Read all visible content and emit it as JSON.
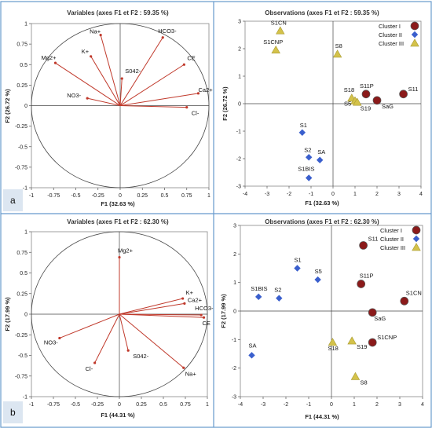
{
  "panels": [
    {
      "letter": "a"
    },
    {
      "letter": "b"
    }
  ],
  "colors": {
    "cluster_I": "#8b1a1a",
    "cluster_I_ring": "#c23b3b",
    "cluster_II": "#3a5fcd",
    "cluster_III": "#d4c24a",
    "cluster_III_edge": "#a89a30",
    "vector": "#c0392b",
    "circle": "#444444",
    "frame": "#6699cc",
    "letter_bg": "#dce6f1"
  },
  "chart_data": [
    {
      "type": "scatter",
      "variant": "correlation-circle",
      "title": "Variables (axes F1 et F2 : 59.35 %)",
      "xlabel": "F1 (32.63 %)",
      "ylabel": "F2 (26.72 %)",
      "xlim": [
        -1,
        1
      ],
      "ylim": [
        -1,
        1
      ],
      "xticks": [
        "-1",
        "-0.75",
        "-0.5",
        "-0.25",
        "0",
        "0.25",
        "0.5",
        "0.75",
        "1"
      ],
      "yticks": [
        "-1",
        "-0.75",
        "-0.5",
        "-0.25",
        "0",
        "0.25",
        "0.5",
        "0.75",
        "1"
      ],
      "points": [
        {
          "label": "Na+",
          "x": -0.22,
          "y": 0.86
        },
        {
          "label": "K+",
          "x": -0.33,
          "y": 0.6
        },
        {
          "label": "Mg2+",
          "x": -0.73,
          "y": 0.52
        },
        {
          "label": "NO3-",
          "x": -0.37,
          "y": 0.09
        },
        {
          "label": "S042-",
          "x": 0.02,
          "y": 0.33
        },
        {
          "label": "HCO3-",
          "x": 0.48,
          "y": 0.83
        },
        {
          "label": "CE",
          "x": 0.72,
          "y": 0.5
        },
        {
          "label": "Ca2+",
          "x": 0.88,
          "y": 0.15
        },
        {
          "label": "Cl-",
          "x": 0.75,
          "y": -0.02
        }
      ]
    },
    {
      "type": "scatter",
      "title": "Observations (axes F1 et F2 : 59.35 %)",
      "xlabel": "F1 (32.63 %)",
      "ylabel": "F2 (26.72 %)",
      "xlim": [
        -4,
        4
      ],
      "ylim": [
        -3,
        3
      ],
      "xticks": [
        "-4",
        "-3",
        "-2",
        "-1",
        "0",
        "1",
        "2",
        "3",
        "4"
      ],
      "yticks": [
        "-3",
        "-2",
        "-1",
        "0",
        "1",
        "2",
        "3"
      ],
      "legend": [
        "Cluster I",
        "Cluster II",
        "Cluster III"
      ],
      "legend_position": "top-right",
      "points": [
        {
          "label": "S1CN",
          "x": -2.4,
          "y": 2.65,
          "cluster": 3
        },
        {
          "label": "S1CNP",
          "x": -2.6,
          "y": 1.95,
          "cluster": 3
        },
        {
          "label": "S8",
          "x": 0.2,
          "y": 1.8,
          "cluster": 3
        },
        {
          "label": "S18",
          "x": 0.85,
          "y": 0.2,
          "cluster": 3
        },
        {
          "label": "S5",
          "x": 1.0,
          "y": 0.1,
          "cluster": 3
        },
        {
          "label": "S19",
          "x": 1.1,
          "y": 0.05,
          "cluster": 3
        },
        {
          "label": "S11P",
          "x": 1.5,
          "y": 0.35,
          "cluster": 1
        },
        {
          "label": "SaG",
          "x": 2.0,
          "y": 0.12,
          "cluster": 1
        },
        {
          "label": "S11",
          "x": 3.2,
          "y": 0.35,
          "cluster": 1
        },
        {
          "label": "S1",
          "x": -1.4,
          "y": -1.05,
          "cluster": 2
        },
        {
          "label": "S2",
          "x": -1.1,
          "y": -1.95,
          "cluster": 2
        },
        {
          "label": "SA",
          "x": -0.6,
          "y": -2.05,
          "cluster": 2
        },
        {
          "label": "S1BIS",
          "x": -1.1,
          "y": -2.7,
          "cluster": 2
        }
      ]
    },
    {
      "type": "scatter",
      "variant": "correlation-circle",
      "title": "Variables (axes F1 et F2 : 62.30 %)",
      "xlabel": "F1 (44.31 %)",
      "ylabel": "F2 (17.99 %)",
      "xlim": [
        -1,
        1
      ],
      "ylim": [
        -1,
        1
      ],
      "xticks": [
        "-1",
        "-0.75",
        "-0.5",
        "-0.25",
        "0",
        "0.25",
        "0.5",
        "0.75",
        "1"
      ],
      "yticks": [
        "-1",
        "-0.75",
        "-0.5",
        "-0.25",
        "0",
        "0.25",
        "0.5",
        "0.75",
        "1"
      ],
      "points": [
        {
          "label": "Mg2+",
          "x": 0.0,
          "y": 0.69
        },
        {
          "label": "K+",
          "x": 0.72,
          "y": 0.19
        },
        {
          "label": "Ca2+",
          "x": 0.74,
          "y": 0.13
        },
        {
          "label": "HCO3-",
          "x": 0.93,
          "y": -0.01
        },
        {
          "label": "CE",
          "x": 0.96,
          "y": -0.04
        },
        {
          "label": "NO3-",
          "x": -0.68,
          "y": -0.29
        },
        {
          "label": "Cl-",
          "x": -0.28,
          "y": -0.59
        },
        {
          "label": "S042-",
          "x": 0.1,
          "y": -0.44
        },
        {
          "label": "Na+",
          "x": 0.73,
          "y": -0.65
        }
      ]
    },
    {
      "type": "scatter",
      "title": "Observations (axes F1 et F2 : 62.30 %)",
      "xlabel": "F1 (44.31 %)",
      "ylabel": "F2 (17.99 %)",
      "xlim": [
        -4,
        4
      ],
      "ylim": [
        -3,
        3
      ],
      "xticks": [
        "-4",
        "-3",
        "-2",
        "-1",
        "0",
        "1",
        "2",
        "3",
        "4"
      ],
      "yticks": [
        "-3",
        "-2",
        "-1",
        "0",
        "1",
        "2",
        "3"
      ],
      "legend": [
        "Cluster I",
        "Cluster II",
        "Cluster III"
      ],
      "legend_position": "top-right",
      "points": [
        {
          "label": "S11",
          "x": 1.4,
          "y": 2.3,
          "cluster": 1
        },
        {
          "label": "S11P",
          "x": 1.3,
          "y": 0.95,
          "cluster": 1
        },
        {
          "label": "S1CN",
          "x": 3.2,
          "y": 0.35,
          "cluster": 1
        },
        {
          "label": "SaG",
          "x": 1.8,
          "y": -0.05,
          "cluster": 1
        },
        {
          "label": "S1CNP",
          "x": 1.8,
          "y": -1.1,
          "cluster": 1
        },
        {
          "label": "S1",
          "x": -1.5,
          "y": 1.5,
          "cluster": 2
        },
        {
          "label": "S5",
          "x": -0.6,
          "y": 1.1,
          "cluster": 2
        },
        {
          "label": "S1BIS",
          "x": -3.2,
          "y": 0.5,
          "cluster": 2
        },
        {
          "label": "S2",
          "x": -2.3,
          "y": 0.45,
          "cluster": 2
        },
        {
          "label": "SA",
          "x": -3.5,
          "y": -1.55,
          "cluster": 2
        },
        {
          "label": "S18",
          "x": 0.05,
          "y": -1.1,
          "cluster": 3
        },
        {
          "label": "S19",
          "x": 0.9,
          "y": -1.05,
          "cluster": 3
        },
        {
          "label": "S8",
          "x": 1.05,
          "y": -2.3,
          "cluster": 3
        }
      ]
    }
  ]
}
